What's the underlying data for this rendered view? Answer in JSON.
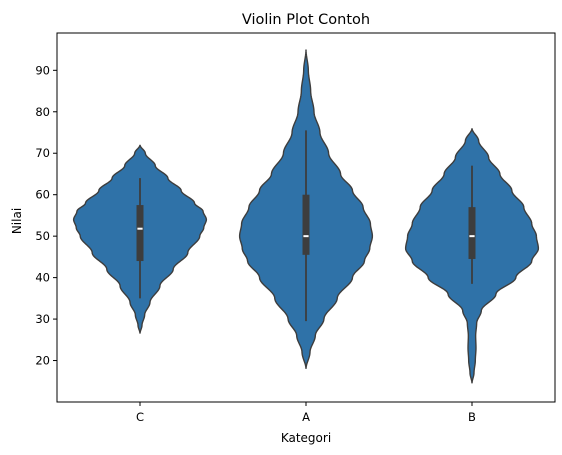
{
  "chart_data": {
    "type": "violin",
    "title": "Violin Plot Contoh",
    "xlabel": "Kategori",
    "ylabel": "Nilai",
    "categories": [
      "C",
      "A",
      "B"
    ],
    "ylim": [
      10,
      99
    ],
    "yticks": [
      20,
      30,
      40,
      50,
      60,
      70,
      80,
      90
    ],
    "grid": false,
    "color": "#2f72a8",
    "edge_color": "#3d3d3d",
    "violins": [
      {
        "category": "C",
        "extent": [
          26.5,
          72
        ],
        "box": {
          "q1": 44,
          "median": 51.8,
          "q3": 57.5
        },
        "whiskers": [
          35,
          64
        ],
        "profile": [
          [
            26.5,
            0.0
          ],
          [
            28.5,
            0.03
          ],
          [
            31,
            0.07
          ],
          [
            34,
            0.15
          ],
          [
            38,
            0.3
          ],
          [
            42,
            0.5
          ],
          [
            46,
            0.72
          ],
          [
            50,
            0.9
          ],
          [
            52,
            0.96
          ],
          [
            54,
            1.0
          ],
          [
            56,
            0.95
          ],
          [
            58,
            0.82
          ],
          [
            61,
            0.62
          ],
          [
            64,
            0.42
          ],
          [
            67,
            0.23
          ],
          [
            70,
            0.08
          ],
          [
            72,
            0.0
          ]
        ]
      },
      {
        "category": "A",
        "extent": [
          18,
          95
        ],
        "box": {
          "q1": 45.5,
          "median": 50,
          "q3": 60
        },
        "whiskers": [
          29.5,
          75.5
        ],
        "profile": [
          [
            18,
            0.0
          ],
          [
            22,
            0.06
          ],
          [
            26,
            0.14
          ],
          [
            30,
            0.27
          ],
          [
            35,
            0.47
          ],
          [
            40,
            0.7
          ],
          [
            44,
            0.88
          ],
          [
            47,
            0.96
          ],
          [
            50,
            1.0
          ],
          [
            53,
            0.97
          ],
          [
            57,
            0.86
          ],
          [
            61,
            0.7
          ],
          [
            65,
            0.52
          ],
          [
            70,
            0.34
          ],
          [
            75,
            0.21
          ],
          [
            80,
            0.12
          ],
          [
            85,
            0.07
          ],
          [
            90,
            0.035
          ],
          [
            95,
            0.0
          ]
        ]
      },
      {
        "category": "B",
        "extent": [
          14.5,
          76
        ],
        "box": {
          "q1": 44.5,
          "median": 50,
          "q3": 57
        },
        "whiskers": [
          38.5,
          67
        ],
        "profile": [
          [
            14.5,
            0.0
          ],
          [
            17,
            0.03
          ],
          [
            20,
            0.05
          ],
          [
            23,
            0.06
          ],
          [
            26,
            0.055
          ],
          [
            29,
            0.07
          ],
          [
            32,
            0.14
          ],
          [
            36,
            0.36
          ],
          [
            40,
            0.66
          ],
          [
            44,
            0.9
          ],
          [
            47,
            1.0
          ],
          [
            50,
            0.97
          ],
          [
            53,
            0.9
          ],
          [
            57,
            0.78
          ],
          [
            61,
            0.6
          ],
          [
            65,
            0.42
          ],
          [
            69,
            0.25
          ],
          [
            73,
            0.1
          ],
          [
            76,
            0.0
          ]
        ]
      }
    ]
  }
}
